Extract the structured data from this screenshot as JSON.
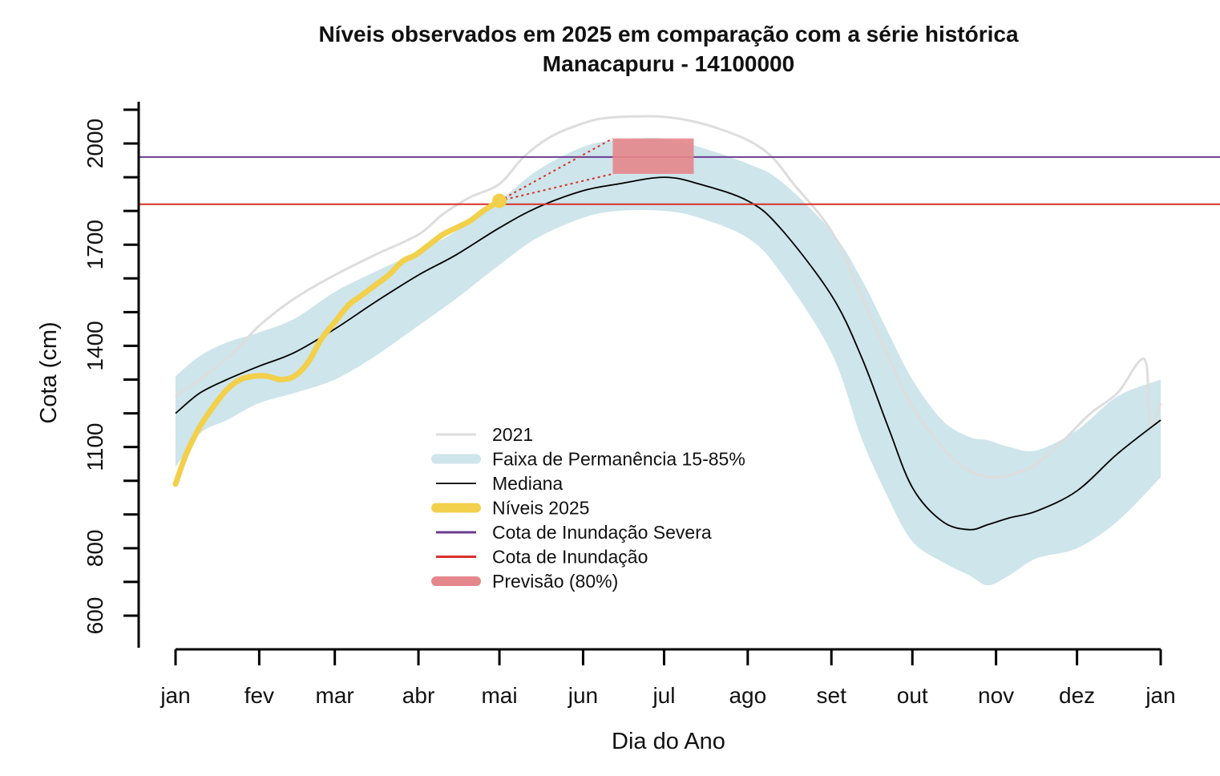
{
  "chart_data": {
    "type": "line",
    "title": "Níveis observados em 2025 em comparação com a série histórica",
    "subtitle": "Manacapuru - 14100000",
    "xlabel": "Dia do Ano",
    "ylabel": "Cota (cm)",
    "x_ticks": [
      "jan",
      "fev",
      "mar",
      "abr",
      "mai",
      "jun",
      "jul",
      "ago",
      "set",
      "out",
      "nov",
      "dez",
      "jan"
    ],
    "x_tick_days": [
      1,
      32,
      60,
      91,
      121,
      152,
      182,
      213,
      244,
      274,
      305,
      335,
      366
    ],
    "y_ticks": [
      600,
      700,
      800,
      900,
      1000,
      1100,
      1200,
      1300,
      1400,
      1500,
      1600,
      1700,
      1800,
      1900,
      2000,
      2100
    ],
    "y_tick_labels": {
      "600": "600",
      "800": "800",
      "1100": "1100",
      "1400": "1400",
      "1700": "1700",
      "2000": "2000"
    },
    "ylim": [
      600,
      2100
    ],
    "xlim": [
      1,
      366
    ],
    "legend_position": "center",
    "series": [
      {
        "name": "2021",
        "style": "line",
        "color": "#dddddd",
        "x": [
          1,
          15,
          25,
          32,
          45,
          60,
          75,
          91,
          100,
          110,
          121,
          130,
          140,
          152,
          160,
          170,
          180,
          190,
          200,
          213,
          222,
          230,
          244,
          255,
          265,
          274,
          285,
          295,
          305,
          315,
          320,
          330,
          340,
          350,
          360,
          362,
          366
        ],
        "y": [
          1250,
          1330,
          1400,
          1460,
          1540,
          1610,
          1670,
          1730,
          1790,
          1840,
          1880,
          1960,
          2020,
          2060,
          2075,
          2080,
          2080,
          2070,
          2050,
          2010,
          1960,
          1880,
          1740,
          1550,
          1370,
          1220,
          1100,
          1030,
          1010,
          1030,
          1050,
          1120,
          1200,
          1260,
          1360,
          1170,
          1230
        ]
      },
      {
        "name": "Faixa de Permanência 15-85%",
        "style": "band",
        "color": "#cde5eb",
        "x": [
          1,
          10,
          20,
          32,
          45,
          60,
          75,
          91,
          105,
          121,
          135,
          152,
          165,
          182,
          195,
          213,
          225,
          244,
          255,
          265,
          274,
          285,
          295,
          302,
          310,
          320,
          335,
          350,
          366
        ],
        "upper": [
          1310,
          1370,
          1410,
          1440,
          1480,
          1560,
          1620,
          1680,
          1740,
          1830,
          1920,
          1990,
          2010,
          2015,
          1990,
          1940,
          1890,
          1740,
          1600,
          1440,
          1300,
          1180,
          1130,
          1120,
          1100,
          1090,
          1150,
          1250,
          1300
        ],
        "lower": [
          1040,
          1140,
          1180,
          1230,
          1260,
          1300,
          1370,
          1460,
          1540,
          1640,
          1720,
          1780,
          1800,
          1800,
          1780,
          1720,
          1620,
          1380,
          1130,
          950,
          820,
          760,
          720,
          690,
          720,
          770,
          800,
          880,
          1010
        ]
      },
      {
        "name": "Mediana",
        "style": "line",
        "color": "#000000",
        "x": [
          1,
          10,
          20,
          32,
          45,
          60,
          75,
          91,
          105,
          121,
          135,
          152,
          165,
          182,
          195,
          213,
          225,
          244,
          255,
          265,
          274,
          285,
          295,
          302,
          310,
          320,
          335,
          350,
          366
        ],
        "y": [
          1200,
          1260,
          1300,
          1340,
          1380,
          1450,
          1530,
          1610,
          1670,
          1750,
          1810,
          1860,
          1880,
          1900,
          1880,
          1830,
          1750,
          1550,
          1370,
          1160,
          980,
          880,
          855,
          870,
          890,
          910,
          970,
          1080,
          1180
        ]
      },
      {
        "name": "Níveis 2025",
        "style": "line",
        "color": "#f2d04b",
        "x": [
          1,
          5,
          10,
          15,
          20,
          25,
          30,
          35,
          40,
          45,
          50,
          55,
          60,
          65,
          70,
          75,
          80,
          85,
          90,
          95,
          100,
          105,
          110,
          115,
          121
        ],
        "y": [
          990,
          1080,
          1160,
          1220,
          1270,
          1300,
          1310,
          1310,
          1300,
          1310,
          1350,
          1420,
          1470,
          1520,
          1550,
          1580,
          1610,
          1650,
          1670,
          1700,
          1730,
          1750,
          1770,
          1800,
          1830
        ]
      },
      {
        "name": "Cota de Inundação Severa",
        "style": "hline",
        "color": "#6a3d8f",
        "y": 1960
      },
      {
        "name": "Cota de Inundação",
        "style": "hline",
        "color": "#d9302a",
        "y": 1820
      },
      {
        "name": "Previsão (80%)",
        "style": "rect",
        "color": "#e5868c",
        "x0": 163,
        "x1": 193,
        "y0": 1910,
        "y1": 2015,
        "connector_color": "#d9302a",
        "connector_from": [
          121,
          1830
        ],
        "connector_to": [
          [
            163,
            2015
          ],
          [
            163,
            1910
          ]
        ]
      }
    ]
  },
  "legend": [
    {
      "label": "2021",
      "kind": "line",
      "color": "#dddddd"
    },
    {
      "label": "Faixa de Permanência 15-85%",
      "kind": "thick",
      "color": "#cde5eb"
    },
    {
      "label": "Mediana",
      "kind": "line",
      "color": "#000000"
    },
    {
      "label": "Níveis 2025",
      "kind": "thick",
      "color": "#f2d04b"
    },
    {
      "label": "Cota de Inundação Severa",
      "kind": "line",
      "color": "#6a3d8f"
    },
    {
      "label": "Cota de Inundação",
      "kind": "line",
      "color": "#d9302a"
    },
    {
      "label": "Previsão (80%)",
      "kind": "thick",
      "color": "#e5868c"
    }
  ]
}
